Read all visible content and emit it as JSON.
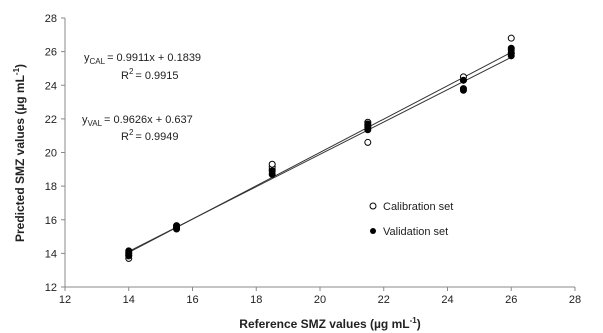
{
  "chart_data": {
    "type": "scatter",
    "xlabel": "Reference SMZ values (µg mL",
    "xlabel_sup": "-1",
    "xlabel_end": ")",
    "ylabel": "Predicted SMZ values (µg mL",
    "ylabel_sup": "-1",
    "ylabel_end": ")",
    "xlim": [
      12,
      28
    ],
    "ylim": [
      12,
      28
    ],
    "x_ticks": [
      "12",
      "14",
      "16",
      "18",
      "20",
      "22",
      "24",
      "26",
      "28"
    ],
    "y_ticks": [
      "12",
      "14",
      "16",
      "18",
      "20",
      "22",
      "24",
      "26",
      "28"
    ],
    "grid": false,
    "legend_position": "right",
    "series": [
      {
        "name": "Calibration set",
        "marker": "open-circle",
        "points": [
          [
            14,
            13.7
          ],
          [
            14,
            13.85
          ],
          [
            14,
            14.0
          ],
          [
            15.5,
            15.5
          ],
          [
            15.5,
            15.6
          ],
          [
            18.5,
            19.0
          ],
          [
            18.5,
            19.15
          ],
          [
            18.5,
            19.3
          ],
          [
            21.5,
            20.6
          ],
          [
            21.5,
            21.6
          ],
          [
            21.5,
            21.8
          ],
          [
            24.5,
            24.3
          ],
          [
            24.5,
            24.5
          ],
          [
            26,
            25.9
          ],
          [
            26,
            26.1
          ],
          [
            26,
            26.8
          ]
        ],
        "fit": {
          "slope": 0.9911,
          "intercept": 0.1839
        }
      },
      {
        "name": "Validation set",
        "marker": "filled-circle",
        "points": [
          [
            14,
            13.9
          ],
          [
            14,
            14.05
          ],
          [
            14,
            14.15
          ],
          [
            15.5,
            15.45
          ],
          [
            15.5,
            15.65
          ],
          [
            18.5,
            18.7
          ],
          [
            18.5,
            18.9
          ],
          [
            21.5,
            21.35
          ],
          [
            21.5,
            21.5
          ],
          [
            21.5,
            21.7
          ],
          [
            24.5,
            23.7
          ],
          [
            24.5,
            23.8
          ],
          [
            24.5,
            24.3
          ],
          [
            26,
            25.75
          ],
          [
            26,
            25.9
          ],
          [
            26,
            26.2
          ]
        ],
        "fit": {
          "slope": 0.9626,
          "intercept": 0.637
        }
      }
    ],
    "annotations": {
      "cal": {
        "y_prefix": "y",
        "y_sub": "CAL",
        "equation": "= 0.9911x + 0.1839",
        "r2_prefix": "R",
        "r2_sup": "2",
        "r2_value": "= 0.9915"
      },
      "val": {
        "y_prefix": "y",
        "y_sub": "VAL",
        "equation": "= 0.9626x + 0.637",
        "r2_prefix": "R",
        "r2_sup": "2",
        "r2_value": "= 0.9949"
      }
    }
  }
}
